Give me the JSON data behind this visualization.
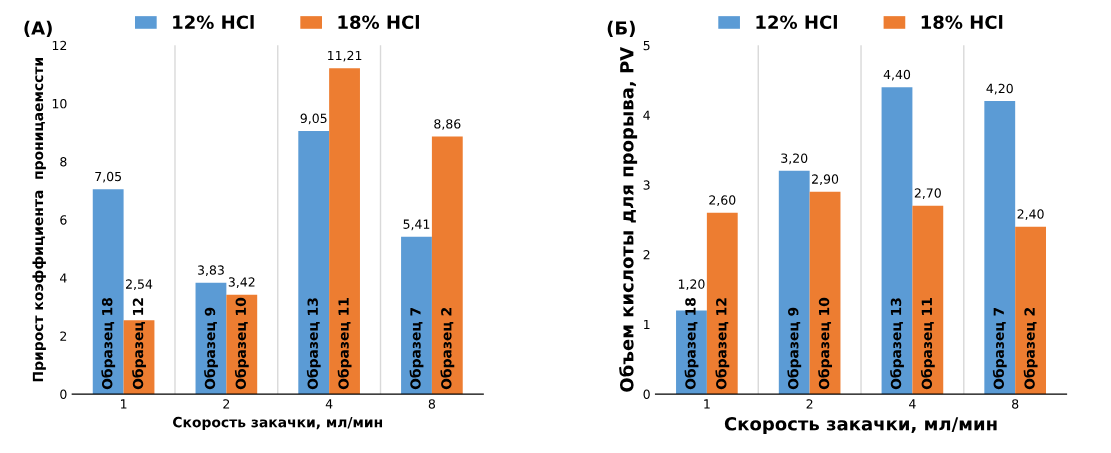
{
  "chart_data": [
    {
      "type": "bar",
      "title": "(А)",
      "xlabel": "Скорость закачки, мл/мин",
      "ylabel": "Прирост коэффициента  проницаемсcти",
      "categories": [
        "1",
        "2",
        "4",
        "8"
      ],
      "series": [
        {
          "name": "12% HCl",
          "color": "#5b9bd5",
          "values": [
            7.05,
            3.83,
            9.05,
            5.41
          ],
          "value_labels": [
            "7,05",
            "3,83",
            "9,05",
            "5,41"
          ]
        },
        {
          "name": "18% HCl",
          "color": "#ed7d31",
          "values": [
            2.54,
            3.42,
            11.21,
            8.86
          ],
          "value_labels": [
            "2,54",
            "3,42",
            "11,21",
            "8,86"
          ]
        }
      ],
      "ylim": [
        0,
        12
      ],
      "yticks": [
        0,
        2,
        4,
        6,
        8,
        10,
        12
      ],
      "grid": "x",
      "legend": "top",
      "annotations": [
        "Образец 18",
        "Образец 9",
        "Образец 13",
        "Образец 7",
        "Образец 12",
        "Образец 10",
        "Образец 11",
        "Образец 2"
      ]
    },
    {
      "type": "bar",
      "title": "(Б)",
      "xlabel": "Скорость закачки, мл/мин",
      "ylabel": "Объем кислоты для прорыва, PV",
      "categories": [
        "1",
        "2",
        "4",
        "8"
      ],
      "series": [
        {
          "name": "12% HCl",
          "color": "#5b9bd5",
          "values": [
            1.2,
            3.2,
            4.4,
            4.2
          ],
          "value_labels": [
            "1,20",
            "3,20",
            "4,40",
            "4,20"
          ]
        },
        {
          "name": "18% HCl",
          "color": "#ed7d31",
          "values": [
            2.6,
            2.9,
            2.7,
            2.4
          ],
          "value_labels": [
            "2,60",
            "2,90",
            "2,70",
            "2,40"
          ]
        }
      ],
      "ylim": [
        0,
        5
      ],
      "yticks": [
        0,
        1,
        2,
        3,
        4,
        5
      ],
      "grid": "x",
      "legend": "top",
      "annotations": [
        "Образец 18",
        "Образец 9",
        "Образец 13",
        "Образец 7",
        "Образец 12",
        "Образец 10",
        "Образец 11",
        "Образец 2"
      ]
    }
  ]
}
